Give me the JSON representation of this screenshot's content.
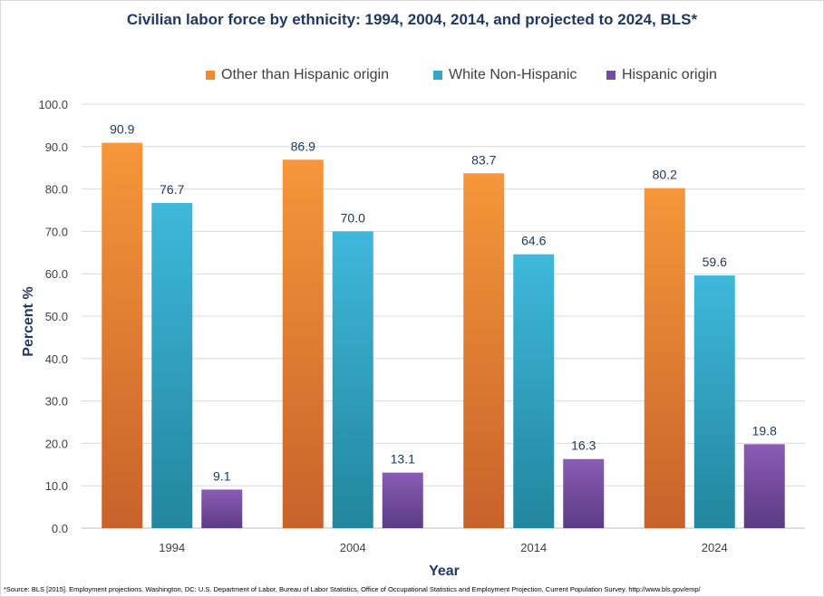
{
  "chart_data": {
    "type": "bar",
    "title": "Civilian labor force by ethnicity: 1994, 2004, 2014, and projected to 2024, BLS*",
    "xlabel": "Year",
    "ylabel": "Percent %",
    "categories": [
      "1994",
      "2004",
      "2014",
      "2024"
    ],
    "series": [
      {
        "name": "Other than Hispanic origin",
        "values": [
          90.9,
          86.9,
          83.7,
          80.2
        ],
        "color_top": "#f7963a",
        "color_bottom": "#c8622a"
      },
      {
        "name": "White Non-Hispanic",
        "values": [
          76.7,
          70.0,
          64.6,
          59.6
        ],
        "color_top": "#3fb8db",
        "color_bottom": "#22869e"
      },
      {
        "name": "Hispanic origin",
        "values": [
          9.1,
          13.1,
          16.3,
          19.8
        ],
        "color_top": "#8a5cb5",
        "color_bottom": "#5c3b84"
      }
    ],
    "ylim": [
      0,
      100
    ],
    "yticks": [
      "0.0",
      "10.0",
      "20.0",
      "30.0",
      "40.0",
      "50.0",
      "60.0",
      "70.0",
      "80.0",
      "90.0",
      "100.0"
    ],
    "data_labels": [
      [
        "90.9",
        "86.9",
        "83.7",
        "80.2"
      ],
      [
        "76.7",
        "70.0",
        "64.6",
        "59.6"
      ],
      [
        "9.1",
        "13.1",
        "16.3",
        "19.8"
      ]
    ],
    "grid": true,
    "legend_position": "top"
  },
  "source_note": "*Source: BLS [2015]. Employment projections. Washington, DC: U.S. Department of Labor, Bureau of Labor Statistics, Office of Occupational Statistics and Employment Projection, Current Population Survey. http://www.bls.gov/emp/"
}
